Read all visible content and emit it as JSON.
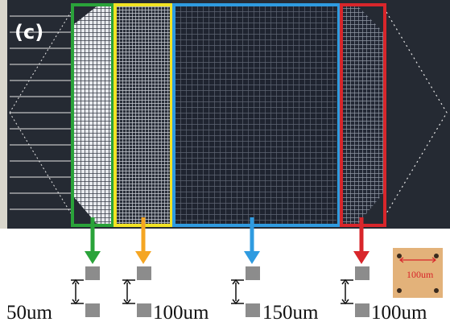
{
  "panel_label": "(c)",
  "spacing_labels": [
    "50um",
    "100um",
    "150um",
    "100um"
  ],
  "inset": {
    "label": "100um"
  }
}
